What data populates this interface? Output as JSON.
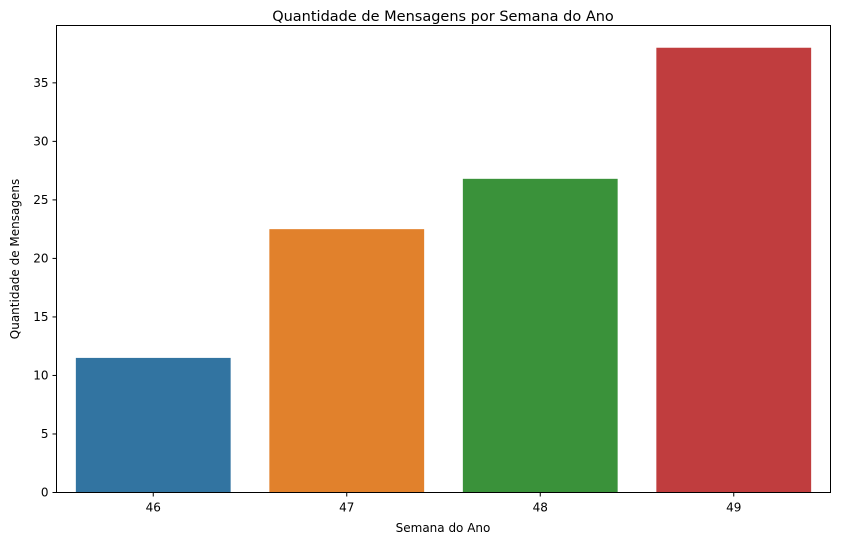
{
  "chart_data": {
    "type": "bar",
    "title": "Quantidade de Mensagens por Semana do Ano",
    "xlabel": "Semana do Ano",
    "ylabel": "Quantidade de Mensagens",
    "categories": [
      "46",
      "47",
      "48",
      "49"
    ],
    "values": [
      11.5,
      22.5,
      26.8,
      38.0
    ],
    "colors": [
      "#3274a1",
      "#e1812c",
      "#3a923a",
      "#c03d3e"
    ],
    "ylim": [
      0,
      39.9
    ],
    "yticks": [
      0,
      5,
      10,
      15,
      20,
      25,
      30,
      35
    ],
    "grid": false,
    "legend": "none"
  }
}
